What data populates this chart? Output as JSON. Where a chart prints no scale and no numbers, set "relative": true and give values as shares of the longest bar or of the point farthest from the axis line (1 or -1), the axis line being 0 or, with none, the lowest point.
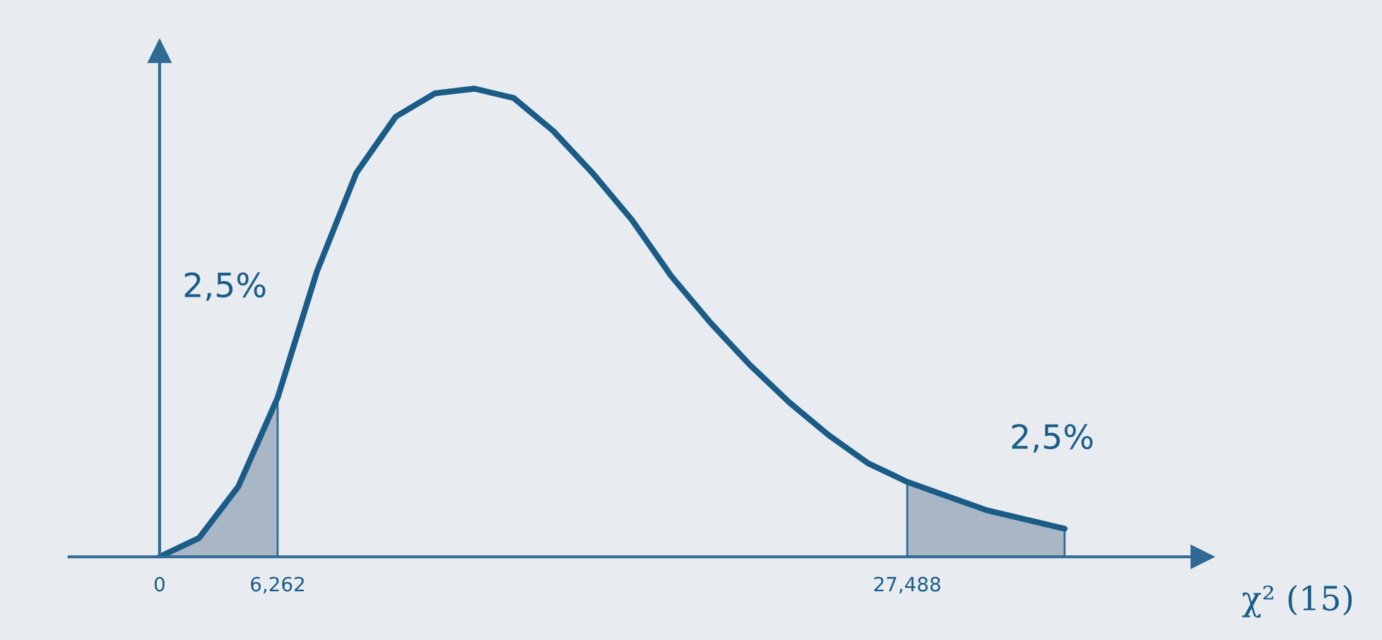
{
  "chart_data": {
    "type": "line",
    "relative": true,
    "xlabel": "χ² (15)",
    "categories": [
      "0",
      null,
      null,
      "6,262",
      null,
      null,
      null,
      null,
      null,
      null,
      null,
      null,
      null,
      null,
      null,
      null,
      null,
      null,
      null,
      "27,488",
      null,
      null,
      null,
      null
    ],
    "grid": false,
    "legend": false,
    "marker": "none",
    "line_style": "solid",
    "series": [
      {
        "type": "area",
        "color": "#a8b6c5",
        "values": [
          0,
          0.04,
          0.15,
          0.34,
          null,
          null,
          null,
          null,
          null,
          null,
          null,
          null,
          null,
          null,
          null,
          null,
          null,
          null,
          null,
          null,
          null,
          null,
          null,
          null
        ]
      },
      {
        "type": "area",
        "color": "#a8b6c5",
        "values": [
          null,
          null,
          null,
          null,
          null,
          null,
          null,
          null,
          null,
          null,
          null,
          null,
          null,
          null,
          null,
          null,
          null,
          null,
          null,
          0.16,
          0.13,
          0.1,
          0.08,
          0.06
        ]
      },
      {
        "color": "#1b5c87",
        "values": [
          0,
          0.04,
          0.15,
          0.34,
          0.61,
          0.82,
          0.94,
          0.99,
          1.0,
          0.98,
          0.91,
          0.82,
          0.72,
          0.6,
          0.5,
          0.41,
          0.33,
          0.26,
          0.2,
          0.16,
          0.13,
          0.1,
          0.08,
          0.06
        ]
      }
    ],
    "annotations": [
      "2,5%",
      "2,5%"
    ]
  }
}
